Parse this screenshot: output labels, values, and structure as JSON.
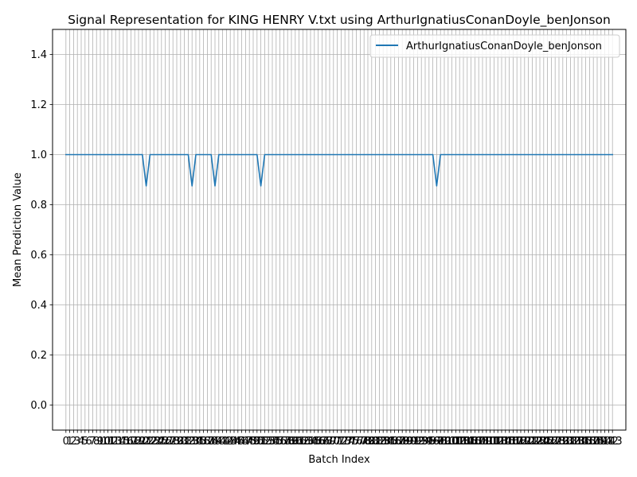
{
  "chart_data": {
    "type": "line",
    "title": "Signal Representation for KING HENRY V.txt using ArthurIgnatiusConanDoyle_benJonson",
    "xlabel": "Batch Index",
    "ylabel": "Mean Prediction Value",
    "xlim": [
      -3.5,
      146.5
    ],
    "ylim": [
      -0.1,
      1.5
    ],
    "grid": true,
    "legend_position": "top-right",
    "y_ticks": [
      "0.0",
      "0.2",
      "0.4",
      "0.6",
      "0.8",
      "1.0",
      "1.2",
      "1.4"
    ],
    "x_ticks": [
      "0",
      "1",
      "2",
      "3",
      "4",
      "5",
      "6",
      "7",
      "8",
      "9",
      "10",
      "11",
      "12",
      "13",
      "14",
      "15",
      "16",
      "17",
      "18",
      "19",
      "20",
      "21",
      "22",
      "23",
      "24",
      "25",
      "26",
      "27",
      "28",
      "29",
      "30",
      "31",
      "32",
      "33",
      "34",
      "35",
      "36",
      "37",
      "38",
      "39",
      "40",
      "41",
      "42",
      "43",
      "44",
      "45",
      "46",
      "47",
      "48",
      "49",
      "50",
      "51",
      "52",
      "53",
      "54",
      "55",
      "56",
      "57",
      "58",
      "59",
      "60",
      "61",
      "62",
      "63",
      "64",
      "65",
      "66",
      "67",
      "68",
      "69",
      "70",
      "71",
      "72",
      "73",
      "74",
      "75",
      "76",
      "77",
      "78",
      "79",
      "80",
      "81",
      "82",
      "83",
      "84",
      "85",
      "86",
      "87",
      "88",
      "89",
      "90",
      "91",
      "92",
      "93",
      "94",
      "95",
      "96",
      "97",
      "98",
      "99",
      "100",
      "101",
      "102",
      "103",
      "104",
      "105",
      "106",
      "107",
      "108",
      "109",
      "110",
      "111",
      "112",
      "113",
      "114",
      "115",
      "116",
      "117",
      "118",
      "119",
      "120",
      "121",
      "122",
      "123",
      "124",
      "125",
      "126",
      "127",
      "128",
      "129",
      "130",
      "131",
      "132",
      "133",
      "134",
      "135",
      "136",
      "137",
      "138",
      "139",
      "140",
      "141",
      "142",
      "143"
    ],
    "series": [
      {
        "name": "ArthurIgnatiusConanDoyle_benJonson",
        "color": "#1f77b4",
        "x": [
          0,
          1,
          2,
          3,
          4,
          5,
          6,
          7,
          8,
          9,
          10,
          11,
          12,
          13,
          14,
          15,
          16,
          17,
          18,
          19,
          20,
          21,
          22,
          23,
          24,
          25,
          26,
          27,
          28,
          29,
          30,
          31,
          32,
          33,
          34,
          35,
          36,
          37,
          38,
          39,
          40,
          41,
          42,
          43,
          44,
          45,
          46,
          47,
          48,
          49,
          50,
          51,
          52,
          53,
          54,
          55,
          56,
          57,
          58,
          59,
          60,
          61,
          62,
          63,
          64,
          65,
          66,
          67,
          68,
          69,
          70,
          71,
          72,
          73,
          74,
          75,
          76,
          77,
          78,
          79,
          80,
          81,
          82,
          83,
          84,
          85,
          86,
          87,
          88,
          89,
          90,
          91,
          92,
          93,
          94,
          95,
          96,
          97,
          98,
          99,
          100,
          101,
          102,
          103,
          104,
          105,
          106,
          107,
          108,
          109,
          110,
          111,
          112,
          113,
          114,
          115,
          116,
          117,
          118,
          119,
          120,
          121,
          122,
          123,
          124,
          125,
          126,
          127,
          128,
          129,
          130,
          131,
          132,
          133,
          134,
          135,
          136,
          137,
          138,
          139,
          140,
          141,
          142,
          143
        ],
        "y": [
          1.0,
          1.0,
          1.0,
          1.0,
          1.0,
          1.0,
          1.0,
          1.0,
          1.0,
          1.0,
          1.0,
          1.0,
          1.0,
          1.0,
          1.0,
          1.0,
          1.0,
          1.0,
          1.0,
          1.0,
          1.0,
          0.875,
          1.0,
          1.0,
          1.0,
          1.0,
          1.0,
          1.0,
          1.0,
          1.0,
          1.0,
          1.0,
          1.0,
          0.875,
          1.0,
          1.0,
          1.0,
          1.0,
          1.0,
          0.875,
          1.0,
          1.0,
          1.0,
          1.0,
          1.0,
          1.0,
          1.0,
          1.0,
          1.0,
          1.0,
          1.0,
          0.875,
          1.0,
          1.0,
          1.0,
          1.0,
          1.0,
          1.0,
          1.0,
          1.0,
          1.0,
          1.0,
          1.0,
          1.0,
          1.0,
          1.0,
          1.0,
          1.0,
          1.0,
          1.0,
          1.0,
          1.0,
          1.0,
          1.0,
          1.0,
          1.0,
          1.0,
          1.0,
          1.0,
          1.0,
          1.0,
          1.0,
          1.0,
          1.0,
          1.0,
          1.0,
          1.0,
          1.0,
          1.0,
          1.0,
          1.0,
          1.0,
          1.0,
          1.0,
          1.0,
          1.0,
          1.0,
          0.875,
          1.0,
          1.0,
          1.0,
          1.0,
          1.0,
          1.0,
          1.0,
          1.0,
          1.0,
          1.0,
          1.0,
          1.0,
          1.0,
          1.0,
          1.0,
          1.0,
          1.0,
          1.0,
          1.0,
          1.0,
          1.0,
          1.0,
          1.0,
          1.0,
          1.0,
          1.0,
          1.0,
          1.0,
          1.0,
          1.0,
          1.0,
          1.0,
          1.0,
          1.0,
          1.0,
          1.0,
          1.0,
          1.0,
          1.0,
          1.0,
          1.0,
          1.0,
          1.0,
          1.0,
          1.0,
          1.0
        ]
      }
    ]
  }
}
